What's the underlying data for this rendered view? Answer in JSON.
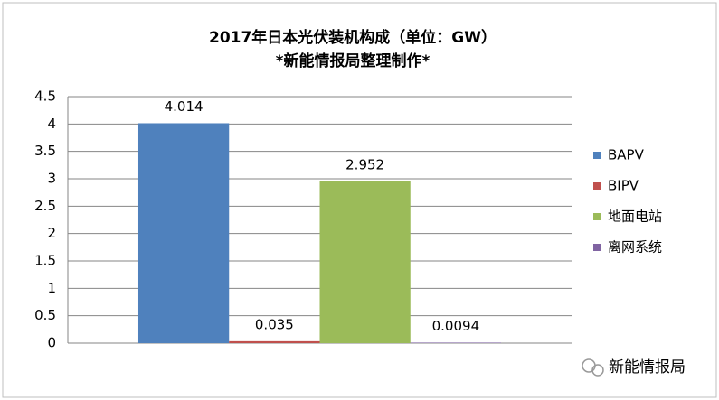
{
  "chart_data": {
    "type": "bar",
    "title": "2017年日本光伏装机构成（单位：GW）",
    "subtitle": "*新能情报局整理制作*",
    "categories": [
      null
    ],
    "series": [
      {
        "name": "BAPV",
        "color": "#4f81bd",
        "values": [
          4.014
        ]
      },
      {
        "name": "BIPV",
        "color": "#c0504d",
        "values": [
          0.035
        ]
      },
      {
        "name": "地面电站",
        "color": "#9bbb59",
        "values": [
          2.952
        ]
      },
      {
        "name": "离网系统",
        "color": "#8064a2",
        "values": [
          0.0094
        ]
      }
    ],
    "ylim": [
      0,
      4.5
    ],
    "yticks": [
      0,
      0.5,
      1,
      1.5,
      2,
      2.5,
      3,
      3.5,
      4,
      4.5
    ],
    "grid": true,
    "legend": "right"
  },
  "watermark": "新能情报局"
}
